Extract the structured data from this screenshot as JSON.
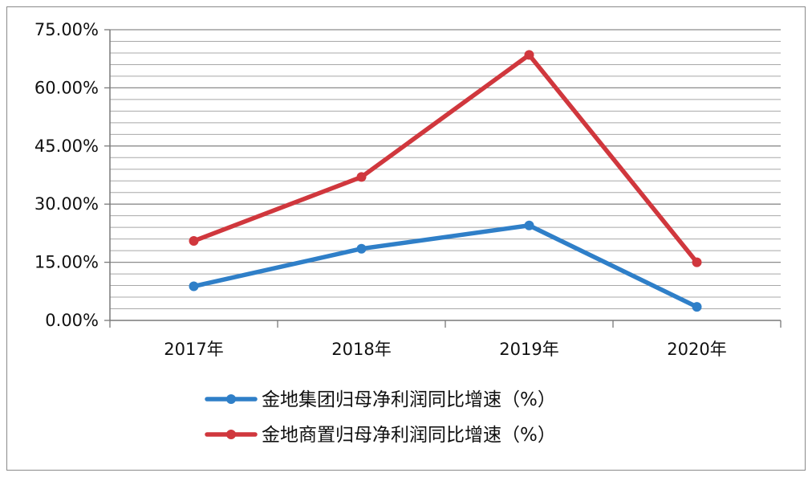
{
  "chart_data": {
    "type": "line",
    "categories": [
      "2017年",
      "2018年",
      "2019年",
      "2020年"
    ],
    "ylim": [
      0,
      75
    ],
    "yticks": [
      0,
      15,
      30,
      45,
      60,
      75
    ],
    "ytick_labels": [
      "0.00%",
      "15.00%",
      "30.00%",
      "45.00%",
      "60.00%",
      "75.00%"
    ],
    "minor_grid_step": 3,
    "grid": true,
    "legend_position": "bottom",
    "series": [
      {
        "name": "金地集团归母净利润同比增速（%）",
        "color": "#2f7fc8",
        "values": [
          8.8,
          18.5,
          24.5,
          3.5
        ]
      },
      {
        "name": "金地商置归母净利润同比增速（%）",
        "color": "#d0373d",
        "values": [
          20.5,
          37.0,
          68.5,
          15.0
        ]
      }
    ]
  }
}
